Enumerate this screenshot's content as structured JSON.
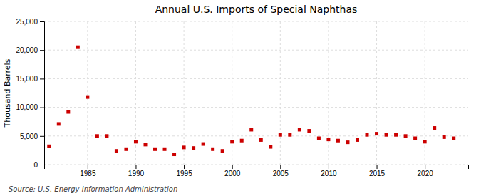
{
  "chart_data": {
    "type": "scatter",
    "title": "Annual U.S. Imports of Special Naphthas",
    "ylabel": "Thousand Barrels",
    "annotations": [
      "Source: U.S. Energy Information Administration"
    ],
    "x": [
      1981,
      1982,
      1983,
      1984,
      1985,
      1986,
      1987,
      1988,
      1989,
      1990,
      1991,
      1992,
      1993,
      1994,
      1995,
      1996,
      1997,
      1998,
      1999,
      2000,
      2001,
      2002,
      2003,
      2004,
      2005,
      2006,
      2007,
      2008,
      2009,
      2010,
      2011,
      2012,
      2013,
      2014,
      2015,
      2016,
      2017,
      2018,
      2019,
      2020,
      2021,
      2022,
      2023
    ],
    "values": [
      3200,
      7100,
      9200,
      20500,
      11800,
      5000,
      5000,
      2400,
      2700,
      4000,
      3500,
      2700,
      2700,
      1800,
      3000,
      2900,
      3600,
      2700,
      2400,
      4000,
      4200,
      6100,
      4300,
      3100,
      5200,
      5200,
      6100,
      5900,
      4600,
      4400,
      4200,
      3900,
      4300,
      5200,
      5400,
      5200,
      5200,
      5000,
      4600,
      4000,
      6400,
      4800,
      4600
    ],
    "color": "#cc0000",
    "marker": "square",
    "xlim": [
      1980.5,
      2024.5
    ],
    "xticks": [
      1985,
      1990,
      1995,
      2000,
      2005,
      2010,
      2015,
      2020
    ],
    "ylim": [
      0,
      25000
    ],
    "yticks": [
      0,
      {
        "value": 5000,
        "label": "5,000"
      },
      {
        "value": 10000,
        "label": "10,000"
      },
      {
        "value": 15000,
        "label": "15,000"
      },
      {
        "value": 20000,
        "label": "20,000"
      },
      {
        "value": 25000,
        "label": "25,000"
      }
    ],
    "grid": true
  }
}
